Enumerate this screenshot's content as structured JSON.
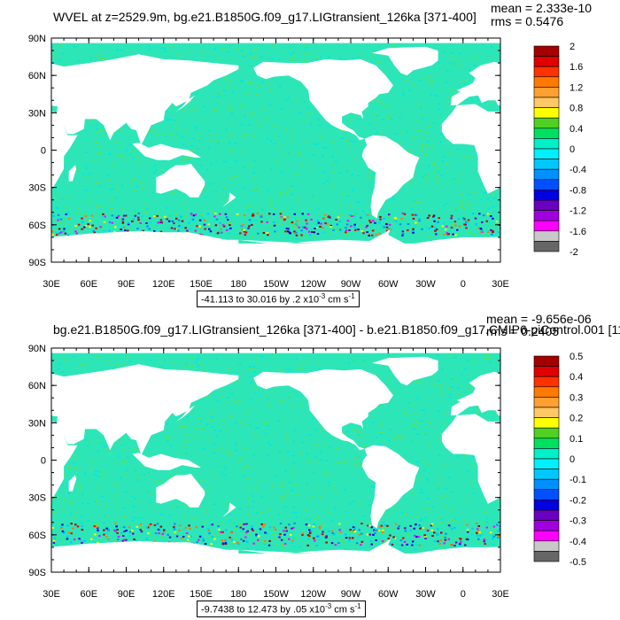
{
  "panels": [
    {
      "title": "WVEL at z=2529.9m, bg.e21.B1850G.f09_g17.LIGtransient_126ka [371-400]",
      "mean": "mean = 2.333e-10",
      "rms": "rms = 0.5476",
      "range_text": "-41.113 to 30.016 by .2 x10",
      "range_exp": "-3",
      "range_units": " cm s",
      "range_units_exp": "-1",
      "colorbar_labels": [
        "2",
        "1.6",
        "1.2",
        "0.8",
        "0.4",
        "0",
        "-0.4",
        "-0.8",
        "-1.2",
        "-1.6",
        "-2"
      ]
    },
    {
      "title": "bg.e21.B1850G.f09_g17.LIGtransient_126ka [371-400] - b.e21.B1850.f09_g17.CMIP6-piControl.001 [11",
      "mean": "mean = -9.656e-06",
      "rms": "rms = 0.2405",
      "range_text": "-9.7438 to 12.473 by .05 x10",
      "range_exp": "-3",
      "range_units": " cm s",
      "range_units_exp": "-1",
      "colorbar_labels": [
        "0.5",
        "0.4",
        "0.3",
        "0.2",
        "0.1",
        "0",
        "-0.1",
        "-0.2",
        "-0.3",
        "-0.4",
        "-0.5"
      ]
    }
  ],
  "lat_labels": [
    "90N",
    "60N",
    "30N",
    "0",
    "30S",
    "60S",
    "90S"
  ],
  "lon_labels": [
    "30E",
    "60E",
    "90E",
    "120E",
    "150E",
    "180",
    "150W",
    "120W",
    "90W",
    "60W",
    "30W",
    "0",
    "30E"
  ],
  "colorbar_colors": [
    "#a50000",
    "#e00000",
    "#ff3200",
    "#ff7a00",
    "#ffa032",
    "#ffc864",
    "#ffff00",
    "#50d020",
    "#00e060",
    "#00f0c8",
    "#00f0ff",
    "#00c8ff",
    "#0090ff",
    "#0050ff",
    "#0000e0",
    "#6a00c0",
    "#a000e0",
    "#ff00ff",
    "#c8c8c8",
    "#666666"
  ],
  "colors": {
    "land": "#ffffff",
    "ocean_base": "#2de6b8",
    "ocean_alt": "#66dd44",
    "frame": "#000000"
  }
}
